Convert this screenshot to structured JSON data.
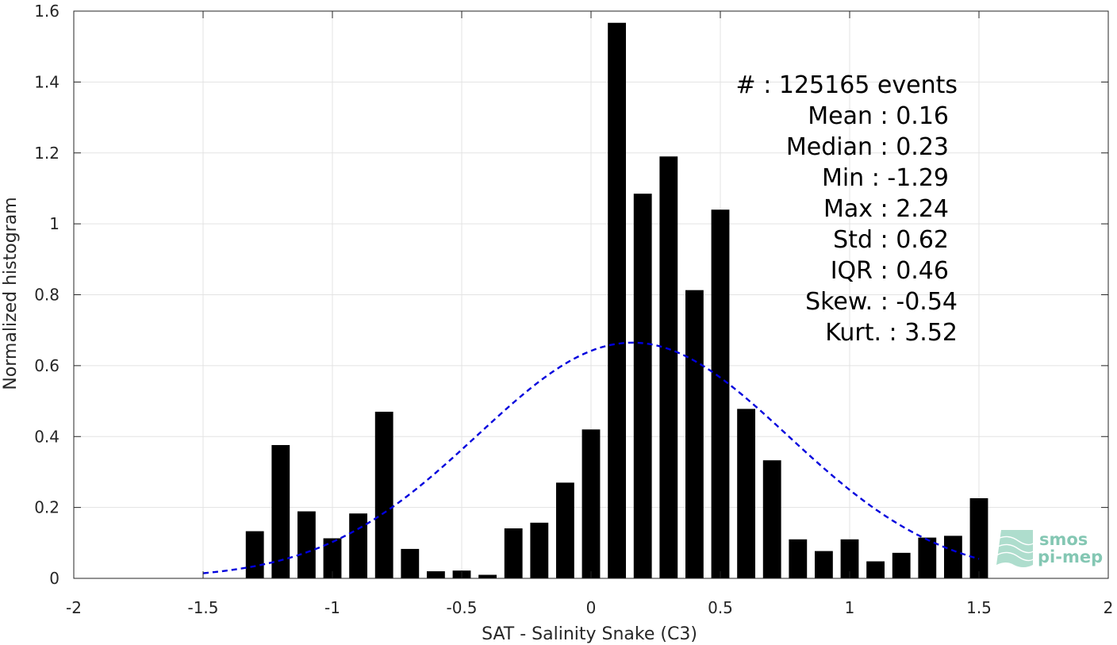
{
  "chart_data": {
    "type": "bar",
    "xlabel": "SAT - Salinity Snake (C3)",
    "ylabel": "Normalized histogram",
    "xlim": [
      -2,
      2
    ],
    "ylim": [
      0,
      1.6
    ],
    "grid": true,
    "x_ticks": [
      -2,
      -1.5,
      -1,
      -0.5,
      0,
      0.5,
      1,
      1.5,
      2
    ],
    "x_tick_labels": [
      "-2",
      "-1.5",
      "-1",
      "-0.5",
      "0",
      "0.5",
      "1",
      "1.5",
      "2"
    ],
    "y_ticks": [
      0,
      0.2,
      0.4,
      0.6,
      0.8,
      1,
      1.2,
      1.4,
      1.6
    ],
    "y_tick_labels": [
      "0",
      "0.2",
      "0.4",
      "0.6",
      "0.8",
      "1",
      "1.2",
      "1.4",
      "1.6"
    ],
    "bar_width": 0.07,
    "bar_color": "#000000",
    "bars": {
      "x": [
        -1.3,
        -1.2,
        -1.1,
        -1.0,
        -0.9,
        -0.8,
        -0.7,
        -0.6,
        -0.5,
        -0.4,
        -0.3,
        -0.2,
        -0.1,
        0.0,
        0.1,
        0.2,
        0.3,
        0.4,
        0.5,
        0.6,
        0.7,
        0.8,
        0.9,
        1.0,
        1.1,
        1.2,
        1.3,
        1.4,
        1.5
      ],
      "values": [
        0.133,
        0.376,
        0.189,
        0.113,
        0.183,
        0.47,
        0.083,
        0.02,
        0.022,
        0.01,
        0.141,
        0.157,
        0.27,
        0.42,
        1.567,
        1.085,
        1.19,
        0.813,
        1.04,
        0.478,
        0.333,
        0.11,
        0.077,
        0.11,
        0.048,
        0.072,
        0.115,
        0.12,
        0.226
      ]
    },
    "fit": {
      "type": "normal",
      "style": "dashed",
      "color": "#0000dd",
      "mean": 0.16,
      "std": 0.6,
      "x_range": [
        -1.5,
        1.5
      ]
    },
    "stats_lines": [
      "#  : 125165 events",
      "Mean : 0.16",
      "Median : 0.23",
      "Min : -1.29",
      "Max : 2.24",
      "Std : 0.62",
      "IQR : 0.46",
      "Skew. : -0.54",
      "Kurt. : 3.52"
    ]
  },
  "logo": {
    "line1": "smos",
    "line2": "pi-mep",
    "color": "#5bb59a"
  }
}
